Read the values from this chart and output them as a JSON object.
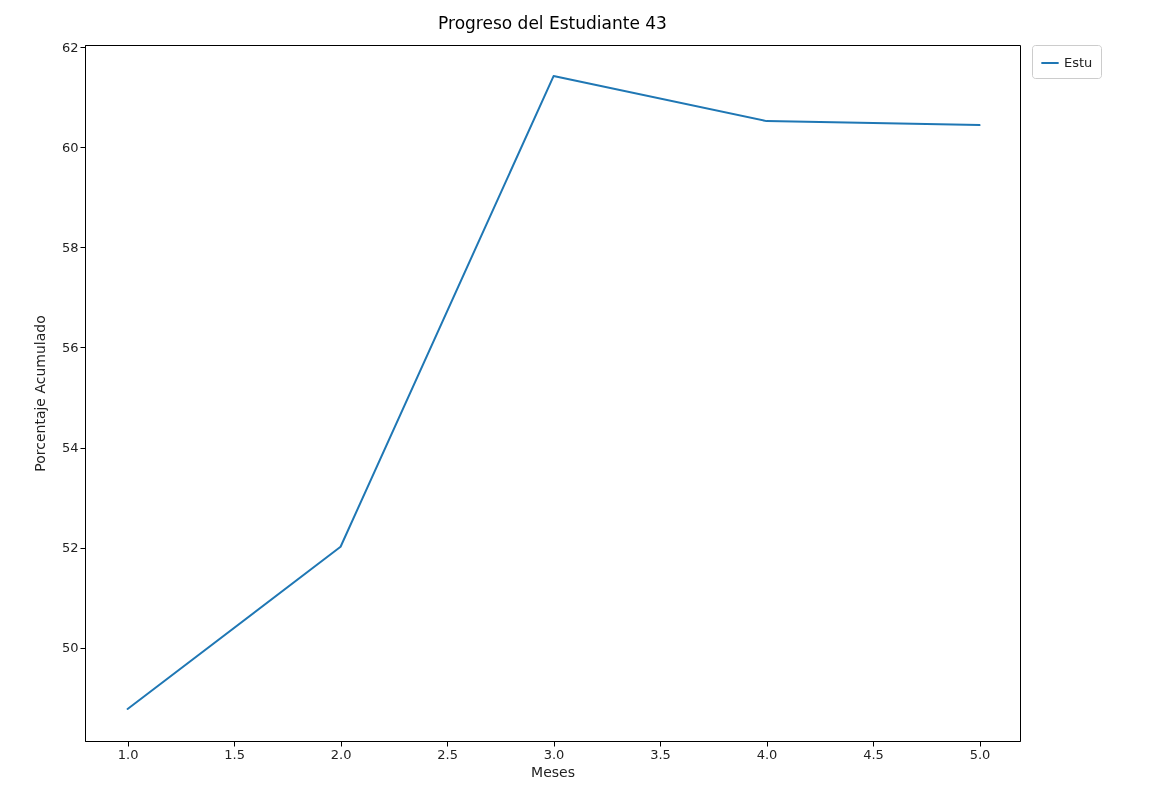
{
  "chart_data": {
    "type": "line",
    "title": "Progreso del Estudiante 43",
    "xlabel": "Meses",
    "ylabel": "Porcentaje Acumulado",
    "x": [
      1,
      2,
      3,
      4,
      5
    ],
    "series": [
      {
        "name": "Estu",
        "color": "#1f77b4",
        "values": [
          48.78,
          52.02,
          61.42,
          60.52,
          60.44
        ]
      }
    ],
    "xlim": [
      0.8,
      5.19
    ],
    "ylim": [
      48.14,
      62.04
    ],
    "xticks": [
      {
        "value": 1,
        "label": "1.0"
      },
      1.5,
      {
        "value": 2,
        "label": "2.0"
      },
      2.5,
      {
        "value": 3,
        "label": "3.0"
      },
      3.5,
      {
        "value": 4,
        "label": "4.0"
      },
      4.5,
      {
        "value": 5,
        "label": "5.0"
      }
    ],
    "yticks": [
      50,
      52,
      54,
      56,
      58,
      60,
      62
    ],
    "legend": "right",
    "grid": false,
    "line_style": "solid"
  }
}
